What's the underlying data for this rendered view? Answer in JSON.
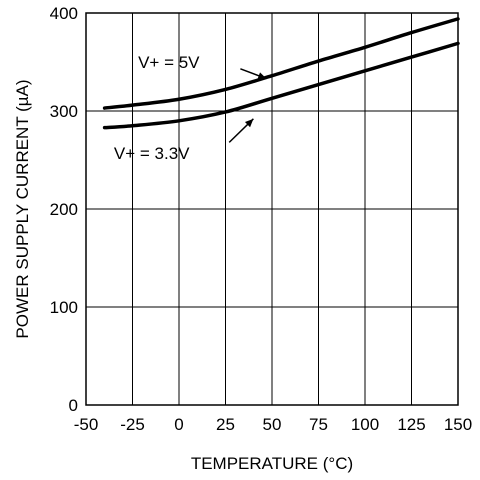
{
  "chart_data": {
    "type": "line",
    "xlabel": "TEMPERATURE (°C)",
    "ylabel": "POWER SUPPLY CURRENT (µA)",
    "xlim": [
      -50,
      150
    ],
    "ylim": [
      0,
      400
    ],
    "x_ticks": [
      -50,
      -25,
      0,
      25,
      50,
      75,
      100,
      125,
      150
    ],
    "y_ticks": [
      0,
      100,
      200,
      300,
      400
    ],
    "x_tick_labels": [
      "-50",
      "-25",
      "0",
      "25",
      "50",
      "75",
      "100",
      "125",
      "150"
    ],
    "y_tick_labels": [
      "0",
      "100",
      "200",
      "300",
      "400"
    ],
    "grid": true,
    "line_color": "#000000",
    "series": [
      {
        "x": [
          -40,
          -25,
          0,
          25,
          50,
          75,
          100,
          125,
          150
        ],
        "y": [
          303,
          306,
          312,
          322,
          336,
          351,
          365,
          380,
          394
        ]
      },
      {
        "x": [
          -40,
          -25,
          0,
          25,
          50,
          75,
          100,
          125,
          150
        ],
        "y": [
          283,
          285,
          290,
          299,
          313,
          327,
          341,
          355,
          369
        ]
      }
    ],
    "annotations": [
      {
        "text": "V+ = 5V",
        "series_index": 0,
        "text_x": -22,
        "text_y": 350,
        "arrow_from": [
          33,
          343
        ],
        "arrow_to": [
          47,
          333
        ]
      },
      {
        "text": "V+ = 3.3V",
        "series_index": 1,
        "text_x": -35,
        "text_y": 257,
        "arrow_from": [
          27,
          268
        ],
        "arrow_to": [
          40,
          292
        ]
      }
    ]
  }
}
